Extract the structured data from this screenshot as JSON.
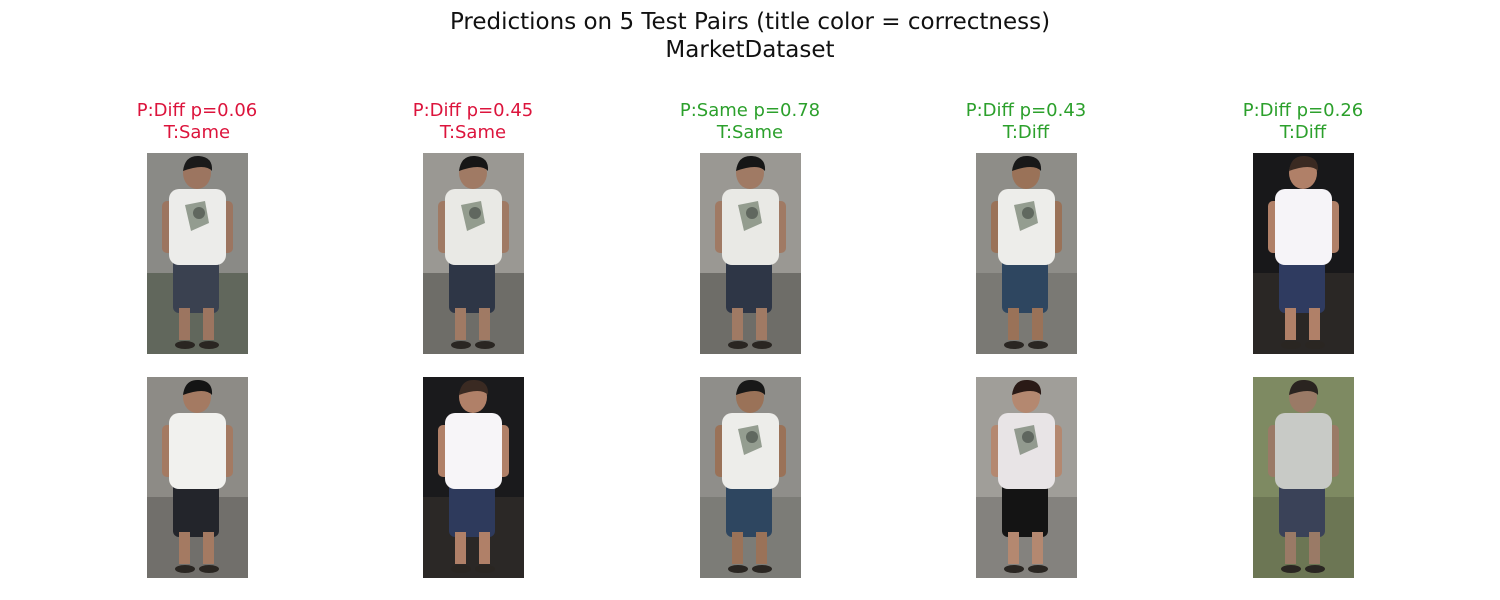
{
  "figure": {
    "title_line1": "Predictions on 5 Test Pairs (title color = correctness)",
    "title_line2": "MarketDataset"
  },
  "colors": {
    "correct": "#2ca02c",
    "incorrect": "#dc143c"
  },
  "pairs": [
    {
      "pred": "P:Diff p=0.06",
      "truth": "T:Same",
      "correct": false,
      "top": {
        "bg": "#8a8a86",
        "bg2": "#3f4a3a",
        "shirt": "#ececea",
        "pants": "#3a4150",
        "skin": "#9c7560",
        "hair": "#1a1a1a",
        "print": true
      },
      "bottom": {
        "bg": "#8d8b86",
        "bg2": "#5b5a55",
        "shirt": "#f1f1ee",
        "pants": "#23252b",
        "skin": "#a47a62",
        "hair": "#141414",
        "print": false
      }
    },
    {
      "pred": "P:Diff p=0.45",
      "truth": "T:Same",
      "correct": false,
      "top": {
        "bg": "#9a9893",
        "bg2": "#4a4a46",
        "shirt": "#e9e9e5",
        "pants": "#2e3646",
        "skin": "#a07a64",
        "hair": "#161616",
        "print": true
      },
      "bottom": {
        "bg": "#1a1a1c",
        "bg2": "#3a3430",
        "shirt": "#f7f5f8",
        "pants": "#2e3a5c",
        "skin": "#b08068",
        "hair": "#3a2a22",
        "print": false
      }
    },
    {
      "pred": "P:Same p=0.78",
      "truth": "T:Same",
      "correct": true,
      "top": {
        "bg": "#9a9893",
        "bg2": "#4a4a46",
        "shirt": "#e9e9e5",
        "pants": "#2e3646",
        "skin": "#a07a64",
        "hair": "#161616",
        "print": true
      },
      "bottom": {
        "bg": "#8f8e8a",
        "bg2": "#6e6d68",
        "shirt": "#ededea",
        "pants": "#2e4660",
        "skin": "#9a7258",
        "hair": "#181818",
        "print": true
      }
    },
    {
      "pred": "P:Diff p=0.43",
      "truth": "T:Diff",
      "correct": true,
      "top": {
        "bg": "#8e8d88",
        "bg2": "#6a6964",
        "shirt": "#ededea",
        "pants": "#2e4660",
        "skin": "#9a7258",
        "hair": "#181818",
        "print": true
      },
      "bottom": {
        "bg": "#a09e99",
        "bg2": "#6d6c68",
        "shirt": "#e8e4e6",
        "pants": "#141414",
        "skin": "#b48870",
        "hair": "#2a1a16",
        "print": true
      }
    },
    {
      "pred": "P:Diff p=0.26",
      "truth": "T:Diff",
      "correct": true,
      "top": {
        "bg": "#18181a",
        "bg2": "#3a3430",
        "shirt": "#f6f4f8",
        "pants": "#2f3b60",
        "skin": "#b08068",
        "hair": "#3a2a22",
        "print": false
      },
      "bottom": {
        "bg": "#7e8a62",
        "bg2": "#5c6648",
        "shirt": "#c8cac6",
        "pants": "#3a4258",
        "skin": "#9a7a66",
        "hair": "#2a2420",
        "print": false
      }
    }
  ]
}
